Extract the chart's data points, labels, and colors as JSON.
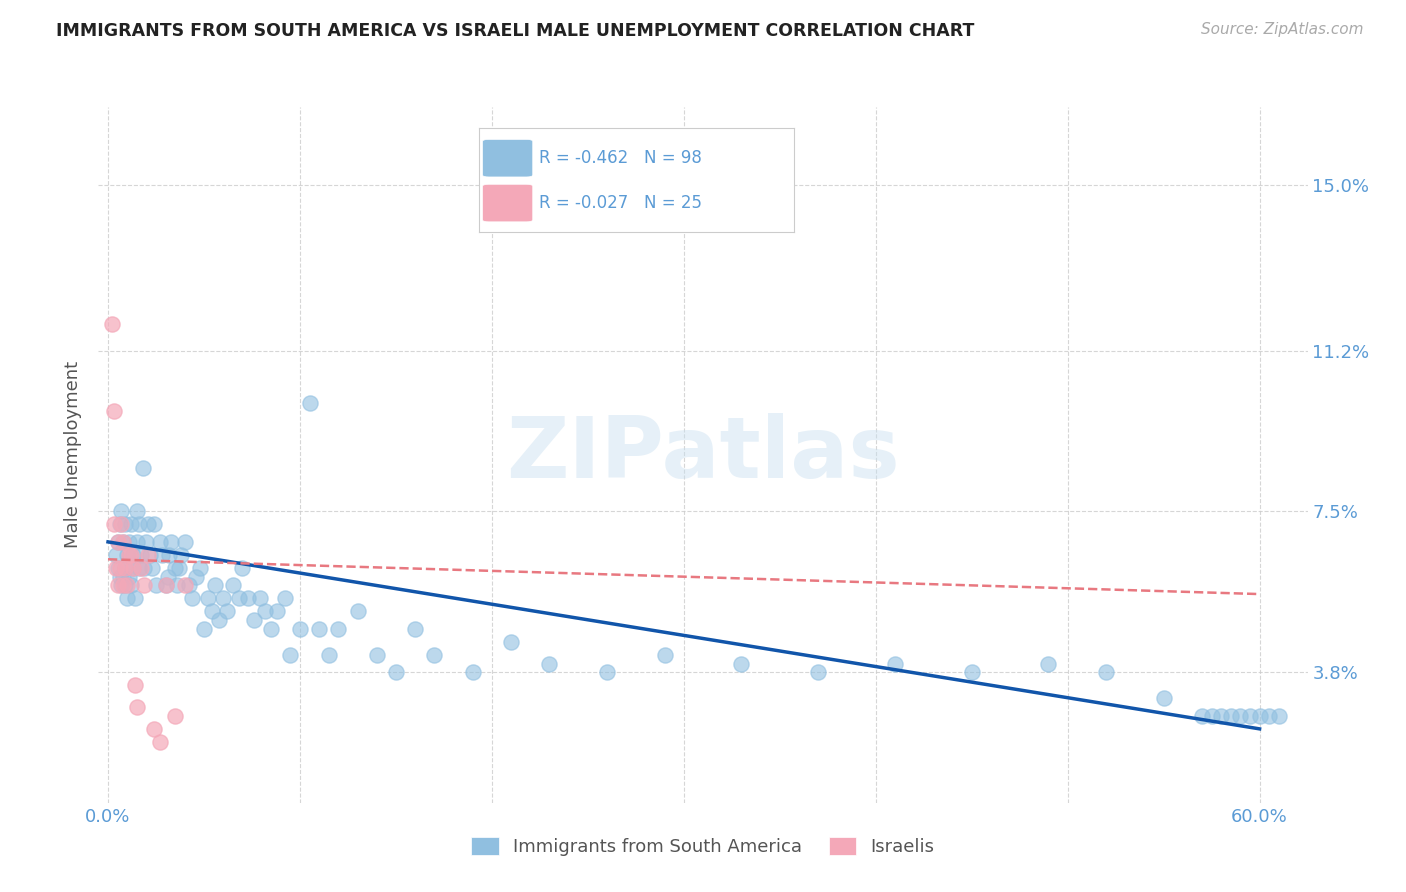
{
  "title": "IMMIGRANTS FROM SOUTH AMERICA VS ISRAELI MALE UNEMPLOYMENT CORRELATION CHART",
  "source": "Source: ZipAtlas.com",
  "ylabel": "Male Unemployment",
  "watermark": "ZIPatlas",
  "legend_blue_label": "Immigrants from South America",
  "legend_pink_label": "Israelis",
  "legend_blue_r": "R = -0.462",
  "legend_blue_n": "N = 98",
  "legend_pink_r": "R = -0.027",
  "legend_pink_n": "N = 25",
  "x_ticks": [
    0.0,
    0.1,
    0.2,
    0.3,
    0.4,
    0.5,
    0.6
  ],
  "y_ticks": [
    0.038,
    0.075,
    0.112,
    0.15
  ],
  "y_tick_labels": [
    "3.8%",
    "7.5%",
    "11.2%",
    "15.0%"
  ],
  "xlim": [
    -0.005,
    0.625
  ],
  "ylim": [
    0.008,
    0.168
  ],
  "background_color": "#ffffff",
  "grid_color": "#cccccc",
  "blue_color": "#90bfe0",
  "pink_color": "#f4a8b8",
  "blue_line_color": "#1155aa",
  "pink_line_color": "#e87880",
  "title_color": "#222222",
  "axis_label_color": "#555555",
  "right_tick_color": "#5b9bd5",
  "blue_scatter_x": [
    0.004,
    0.005,
    0.005,
    0.006,
    0.006,
    0.007,
    0.007,
    0.008,
    0.008,
    0.009,
    0.009,
    0.009,
    0.01,
    0.01,
    0.011,
    0.011,
    0.012,
    0.012,
    0.013,
    0.013,
    0.014,
    0.015,
    0.015,
    0.016,
    0.016,
    0.017,
    0.018,
    0.019,
    0.02,
    0.021,
    0.022,
    0.023,
    0.024,
    0.025,
    0.027,
    0.028,
    0.03,
    0.031,
    0.032,
    0.033,
    0.035,
    0.036,
    0.037,
    0.038,
    0.04,
    0.042,
    0.044,
    0.046,
    0.048,
    0.05,
    0.052,
    0.054,
    0.056,
    0.058,
    0.06,
    0.062,
    0.065,
    0.068,
    0.07,
    0.073,
    0.076,
    0.079,
    0.082,
    0.085,
    0.088,
    0.092,
    0.095,
    0.1,
    0.105,
    0.11,
    0.115,
    0.12,
    0.13,
    0.14,
    0.15,
    0.16,
    0.17,
    0.19,
    0.21,
    0.23,
    0.26,
    0.29,
    0.33,
    0.37,
    0.41,
    0.45,
    0.49,
    0.52,
    0.55,
    0.57,
    0.575,
    0.58,
    0.585,
    0.59,
    0.595,
    0.6,
    0.605,
    0.61
  ],
  "blue_scatter_y": [
    0.065,
    0.062,
    0.068,
    0.06,
    0.072,
    0.058,
    0.075,
    0.06,
    0.068,
    0.062,
    0.058,
    0.072,
    0.065,
    0.055,
    0.068,
    0.06,
    0.072,
    0.058,
    0.065,
    0.062,
    0.055,
    0.075,
    0.068,
    0.062,
    0.072,
    0.065,
    0.085,
    0.062,
    0.068,
    0.072,
    0.065,
    0.062,
    0.072,
    0.058,
    0.068,
    0.065,
    0.058,
    0.06,
    0.065,
    0.068,
    0.062,
    0.058,
    0.062,
    0.065,
    0.068,
    0.058,
    0.055,
    0.06,
    0.062,
    0.048,
    0.055,
    0.052,
    0.058,
    0.05,
    0.055,
    0.052,
    0.058,
    0.055,
    0.062,
    0.055,
    0.05,
    0.055,
    0.052,
    0.048,
    0.052,
    0.055,
    0.042,
    0.048,
    0.1,
    0.048,
    0.042,
    0.048,
    0.052,
    0.042,
    0.038,
    0.048,
    0.042,
    0.038,
    0.045,
    0.04,
    0.038,
    0.042,
    0.04,
    0.038,
    0.04,
    0.038,
    0.04,
    0.038,
    0.032,
    0.028,
    0.028,
    0.028,
    0.028,
    0.028,
    0.028,
    0.028,
    0.028,
    0.028
  ],
  "pink_scatter_x": [
    0.002,
    0.003,
    0.003,
    0.004,
    0.005,
    0.005,
    0.006,
    0.007,
    0.008,
    0.008,
    0.009,
    0.01,
    0.011,
    0.012,
    0.013,
    0.014,
    0.015,
    0.017,
    0.019,
    0.021,
    0.024,
    0.027,
    0.03,
    0.035,
    0.04
  ],
  "pink_scatter_y": [
    0.118,
    0.072,
    0.098,
    0.062,
    0.058,
    0.068,
    0.062,
    0.072,
    0.058,
    0.068,
    0.062,
    0.058,
    0.065,
    0.065,
    0.062,
    0.035,
    0.03,
    0.062,
    0.058,
    0.065,
    0.025,
    0.022,
    0.058,
    0.028,
    0.058
  ],
  "blue_line_x": [
    0.0,
    0.6
  ],
  "blue_line_y": [
    0.068,
    0.025
  ],
  "pink_line_x": [
    0.0,
    0.6
  ],
  "pink_line_y": [
    0.064,
    0.056
  ]
}
